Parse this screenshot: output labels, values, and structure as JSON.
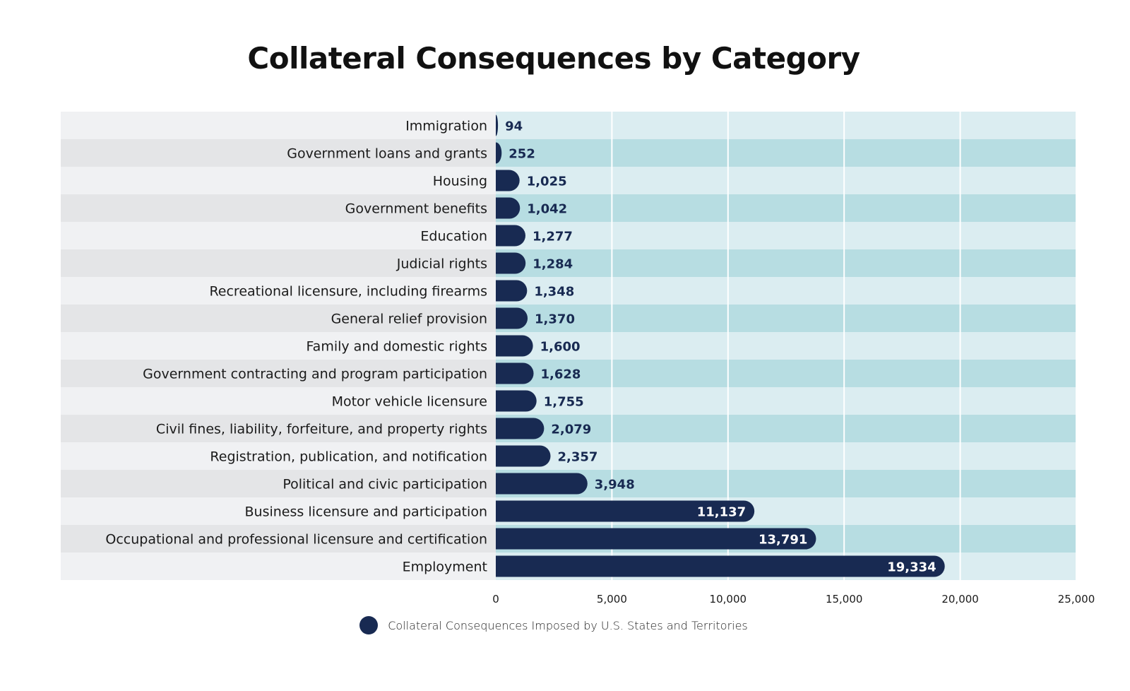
{
  "chart_data": {
    "type": "bar",
    "orientation": "horizontal",
    "title": "Collateral Consequences by Category",
    "xlabel": "",
    "ylabel": "",
    "xlim": [
      0,
      25000
    ],
    "xticks": [
      0,
      5000,
      10000,
      15000,
      20000,
      25000
    ],
    "xtick_labels": [
      "0",
      "5,000",
      "10,000",
      "15,000",
      "20,000",
      "25,000"
    ],
    "grid": true,
    "legend_position": "bottom-center",
    "categories": [
      "Immigration",
      "Government loans and grants",
      "Housing",
      "Government benefits",
      "Education",
      "Judicial rights",
      "Recreational licensure, including firearms",
      "General relief provision",
      "Family and domestic rights",
      "Government contracting and program participation",
      "Motor vehicle licensure",
      "Civil fines, liability, forfeiture, and property rights",
      "Registration, publication, and notification",
      "Political and civic participation",
      "Business licensure and participation",
      "Occupational and professional licensure and certification",
      "Employment"
    ],
    "series": [
      {
        "name": "Collateral Consequences Imposed by U.S. States and Territories",
        "values": [
          94,
          252,
          1025,
          1042,
          1277,
          1284,
          1348,
          1370,
          1600,
          1628,
          1755,
          2079,
          2357,
          3948,
          11137,
          13791,
          19334
        ],
        "value_labels": [
          "94",
          "252",
          "1,025",
          "1,042",
          "1,277",
          "1,284",
          "1,348",
          "1,370",
          "1,600",
          "1,628",
          "1,755",
          "2,079",
          "2,357",
          "3,948",
          "11,137",
          "13,791",
          "19,334"
        ]
      }
    ],
    "colors": {
      "bar": "#182a52",
      "label_bg_light": "#f0f1f3",
      "label_bg_dark": "#e4e5e7",
      "plot_bg_light": "#dbedf1",
      "plot_bg_dark": "#b7dde2",
      "grid": "#ffffff",
      "value_label_outside": "#182a52",
      "value_label_inside": "#ffffff"
    }
  }
}
